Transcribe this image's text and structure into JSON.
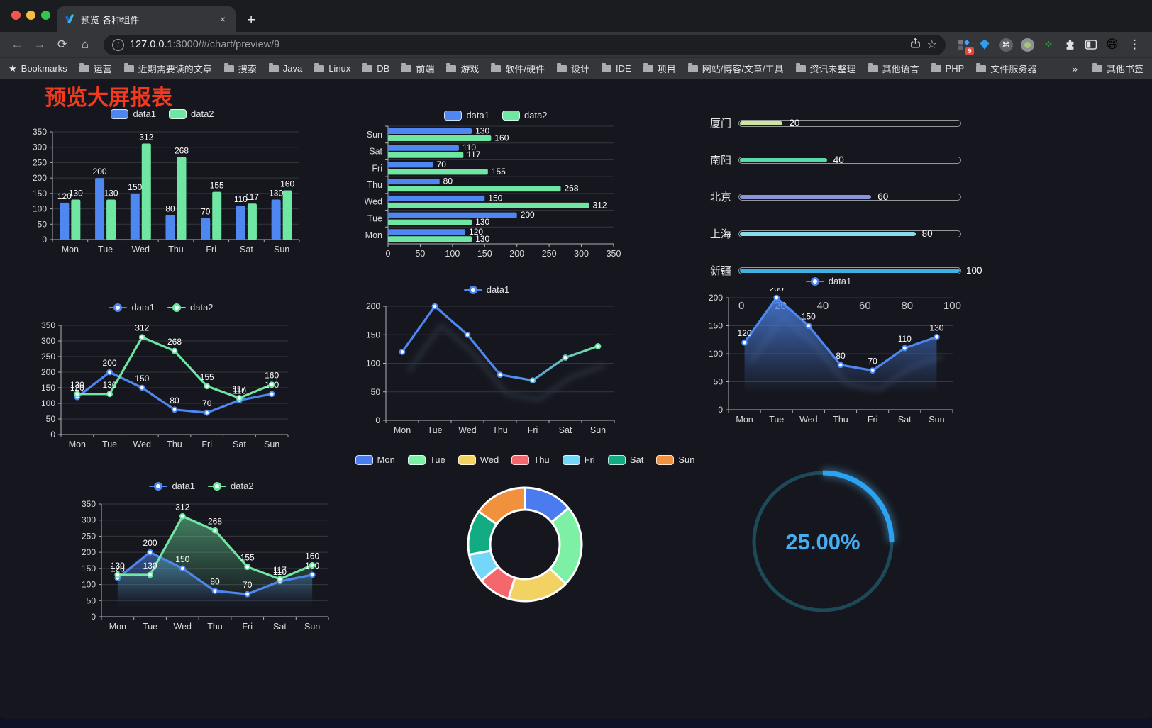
{
  "browser": {
    "tab_title": "预览-各种组件",
    "close_tab_glyph": "×",
    "new_tab_glyph": "+",
    "url_host": "127.0.0.1",
    "url_rest": ":3000/#/chart/preview/9",
    "extension_badge": "9",
    "bookmarks_label": "Bookmarks",
    "bookmarks": [
      "运营",
      "近期需要读的文章",
      "搜索",
      "Java",
      "Linux",
      "DB",
      "前端",
      "游戏",
      "软件/硬件",
      "设计",
      "IDE",
      "项目",
      "网站/博客/文章/工具",
      "资讯未整理",
      "其他语言",
      "PHP",
      "文件服务器"
    ],
    "bookmarks_overflow": "»",
    "other_bookmarks": "其他书签",
    "icons": {
      "back": "←",
      "forward": "→",
      "reload": "⟳",
      "home": "⌂",
      "bookmark_star": "☆",
      "bookmarks_bar_star": "★",
      "cmd": "⌘",
      "green_star": "✧",
      "emoji": "😄",
      "menu": "⋮"
    }
  },
  "page": {
    "title": "预览大屏报表"
  },
  "colors": {
    "data1": "#4e87f0",
    "data2": "#6fe7a3",
    "axis": "#aeb2b8",
    "grid": "rgba(255,255,255,0.14)",
    "tick_label": "#d9dbdf",
    "value_label": "#ffffff",
    "page_bg": "#16171e",
    "title_red": "#f5391f"
  },
  "chart_data": [
    {
      "id": "bar-vertical",
      "type": "bar",
      "legend": [
        "data1",
        "data2"
      ],
      "categories": [
        "Mon",
        "Tue",
        "Wed",
        "Thu",
        "Fri",
        "Sat",
        "Sun"
      ],
      "series": [
        {
          "name": "data1",
          "color": "#4e87f0",
          "values": [
            120,
            200,
            150,
            80,
            70,
            110,
            130
          ]
        },
        {
          "name": "data2",
          "color": "#6fe7a3",
          "values": [
            130,
            130,
            312,
            268,
            155,
            117,
            160
          ]
        }
      ],
      "ylim": [
        0,
        350
      ],
      "yticks": [
        0,
        50,
        100,
        150,
        200,
        250,
        300,
        350
      ],
      "grid": true
    },
    {
      "id": "bar-horizontal",
      "type": "bar",
      "orientation": "horizontal",
      "legend": [
        "data1",
        "data2"
      ],
      "categories": [
        "Mon",
        "Tue",
        "Wed",
        "Thu",
        "Fri",
        "Sat",
        "Sun"
      ],
      "series": [
        {
          "name": "data1",
          "color": "#4e87f0",
          "values": [
            120,
            200,
            150,
            80,
            70,
            110,
            130
          ]
        },
        {
          "name": "data2",
          "color": "#6fe7a3",
          "values": [
            130,
            130,
            312,
            268,
            155,
            117,
            160
          ]
        }
      ],
      "xlim": [
        0,
        350
      ],
      "xticks": [
        0,
        50,
        100,
        150,
        200,
        250,
        300,
        350
      ]
    },
    {
      "id": "progress",
      "type": "bar",
      "orientation": "horizontal",
      "items": [
        {
          "label": "厦门",
          "value": 20,
          "color": "#cfe79b"
        },
        {
          "label": "南阳",
          "value": 40,
          "color": "#57dca8"
        },
        {
          "label": "北京",
          "value": 60,
          "color": "#8c95dc"
        },
        {
          "label": "上海",
          "value": 80,
          "color": "#86dde9"
        },
        {
          "label": "新疆",
          "value": 100,
          "color": "#41b0dd"
        }
      ],
      "xlim": [
        0,
        100
      ],
      "xticks": [
        0,
        20,
        40,
        60,
        80,
        100
      ]
    },
    {
      "id": "line-double",
      "type": "line",
      "legend": [
        "data1",
        "data2"
      ],
      "categories": [
        "Mon",
        "Tue",
        "Wed",
        "Thu",
        "Fri",
        "Sat",
        "Sun"
      ],
      "series": [
        {
          "name": "data1",
          "color": "#4e87f0",
          "values": [
            120,
            200,
            150,
            80,
            70,
            110,
            130
          ]
        },
        {
          "name": "data2",
          "color": "#6fe7a3",
          "values": [
            130,
            130,
            312,
            268,
            155,
            117,
            160
          ]
        }
      ],
      "ylim": [
        0,
        350
      ],
      "yticks": [
        0,
        50,
        100,
        150,
        200,
        250,
        300,
        350
      ],
      "show_labels": true
    },
    {
      "id": "line-gradient",
      "type": "line",
      "legend": [
        "data1"
      ],
      "categories": [
        "Mon",
        "Tue",
        "Wed",
        "Thu",
        "Fri",
        "Sat",
        "Sun"
      ],
      "series": [
        {
          "name": "data1",
          "gradient": [
            "#4e87f0",
            "#6fe7a3"
          ],
          "values": [
            120,
            200,
            150,
            80,
            70,
            110,
            130
          ]
        }
      ],
      "ylim": [
        0,
        200
      ],
      "yticks": [
        0,
        50,
        100,
        150,
        200
      ],
      "show_labels": false,
      "shadow": true
    },
    {
      "id": "line-area",
      "type": "area",
      "legend": [
        "data1"
      ],
      "categories": [
        "Mon",
        "Tue",
        "Wed",
        "Thu",
        "Fri",
        "Sat",
        "Sun"
      ],
      "series": [
        {
          "name": "data1",
          "color": "#4e87f0",
          "area": true,
          "area_opacity": 0.8,
          "values": [
            120,
            200,
            150,
            80,
            70,
            110,
            130
          ]
        }
      ],
      "ylim": [
        0,
        200
      ],
      "yticks": [
        0,
        50,
        100,
        150,
        200
      ],
      "show_labels": true,
      "shadow": true
    },
    {
      "id": "area-double",
      "type": "area",
      "legend": [
        "data1",
        "data2"
      ],
      "categories": [
        "Mon",
        "Tue",
        "Wed",
        "Thu",
        "Fri",
        "Sat",
        "Sun"
      ],
      "series": [
        {
          "name": "data1",
          "color": "#4e87f0",
          "area": true,
          "area_opacity": 0.55,
          "values": [
            120,
            200,
            150,
            80,
            70,
            110,
            130
          ]
        },
        {
          "name": "data2",
          "color": "#6fe7a3",
          "area": true,
          "area_opacity": 0.5,
          "values": [
            130,
            130,
            312,
            268,
            155,
            117,
            160
          ]
        }
      ],
      "ylim": [
        0,
        350
      ],
      "yticks": [
        0,
        50,
        100,
        150,
        200,
        250,
        300,
        350
      ],
      "show_labels": true
    },
    {
      "id": "donut",
      "type": "pie",
      "labels": [
        "Mon",
        "Tue",
        "Wed",
        "Thu",
        "Fri",
        "Sat",
        "Sun"
      ],
      "values": [
        120,
        200,
        150,
        80,
        70,
        110,
        130
      ],
      "colors": [
        "#4a7cf0",
        "#7df0a5",
        "#f2d263",
        "#f4686d",
        "#74d7f7",
        "#12ab82",
        "#f2913d"
      ]
    },
    {
      "id": "gauge",
      "type": "gauge",
      "value": 25,
      "display": "25.00%",
      "color": "#2aa4f2",
      "track_color": "#1d4a58",
      "text_color": "#45aef3"
    }
  ]
}
